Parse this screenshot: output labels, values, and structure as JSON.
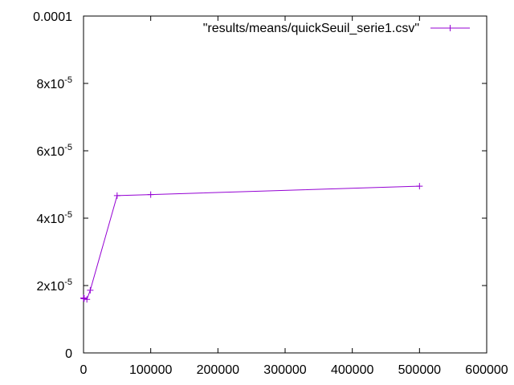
{
  "chart_data": {
    "type": "line",
    "title": "",
    "xlabel": "",
    "ylabel": "",
    "xlim": [
      0,
      600000
    ],
    "ylim": [
      0,
      0.0001
    ],
    "grid": false,
    "legend_position": "top-right",
    "x_ticks": [
      {
        "value": 0,
        "label": "0"
      },
      {
        "value": 100000,
        "label": "100000"
      },
      {
        "value": 200000,
        "label": "200000"
      },
      {
        "value": 300000,
        "label": "300000"
      },
      {
        "value": 400000,
        "label": "400000"
      },
      {
        "value": 500000,
        "label": "500000"
      },
      {
        "value": 600000,
        "label": "600000"
      }
    ],
    "y_ticks": [
      {
        "value": 0,
        "label": "0",
        "mantissa": "0",
        "exponent": ""
      },
      {
        "value": 2e-05,
        "label": "2x10-5",
        "mantissa": "2x10",
        "exponent": "-5"
      },
      {
        "value": 4e-05,
        "label": "4x10-5",
        "mantissa": "4x10",
        "exponent": "-5"
      },
      {
        "value": 6e-05,
        "label": "6x10-5",
        "mantissa": "6x10",
        "exponent": "-5"
      },
      {
        "value": 8e-05,
        "label": "8x10-5",
        "mantissa": "8x10",
        "exponent": "-5"
      },
      {
        "value": 0.0001,
        "label": "0.0001",
        "mantissa": "0.0001",
        "exponent": ""
      }
    ],
    "series": [
      {
        "name": "\"results/means/quickSeuil_serie1.csv\"",
        "color": "#9400d3",
        "marker": "plus",
        "x": [
          100,
          500,
          1000,
          5000,
          10000,
          50000,
          100000,
          500000
        ],
        "y": [
          1.63e-05,
          1.61e-05,
          1.62e-05,
          1.59e-05,
          1.86e-05,
          4.67e-05,
          4.7e-05,
          4.95e-05
        ]
      }
    ]
  }
}
